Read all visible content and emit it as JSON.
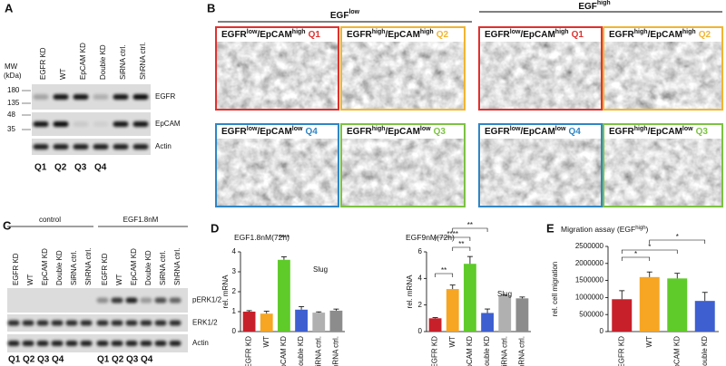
{
  "panel_a": {
    "label": "A",
    "mw_title": [
      "MW",
      "(kDa)"
    ],
    "mw_markers": [
      "180",
      "135",
      "48",
      "35"
    ],
    "lanes": [
      "EGFR KD",
      "WT",
      "EpCAM KD",
      "Double KD",
      "SiRNA ctrl.",
      "ShRNA ctrl."
    ],
    "blots": [
      "EGFR",
      "EpCAM",
      "Actin"
    ],
    "quadrants": [
      {
        "text": "Q1",
        "color": "#d9262b"
      },
      {
        "text": "Q2",
        "color": "#f2b024"
      },
      {
        "text": "Q3",
        "color": "#6cbf3a"
      },
      {
        "text": "Q4",
        "color": "#2f86c6"
      }
    ]
  },
  "panel_b": {
    "label": "B",
    "groups": [
      {
        "name": "EGF",
        "level": "low",
        "images": [
          {
            "parts": [
              "EGFR",
              "low",
              "/EpCAM",
              "high"
            ],
            "quadrant": "Q1",
            "color": "#e0312f"
          },
          {
            "parts": [
              "EGFR",
              "high",
              "/EpCAM",
              "high"
            ],
            "quadrant": "Q2",
            "color": "#f2b530"
          },
          {
            "parts": [
              "EGFR",
              "low",
              "/EpCAM",
              "low"
            ],
            "quadrant": "Q4",
            "color": "#2f86c6"
          },
          {
            "parts": [
              "EGFR",
              "high",
              "/EpCAM",
              "low"
            ],
            "quadrant": "Q3",
            "color": "#7cc242"
          }
        ]
      },
      {
        "name": "EGF",
        "level": "high",
        "images": [
          {
            "parts": [
              "EGFR",
              "low",
              "/EpCAM",
              "high"
            ],
            "quadrant": "Q1",
            "color": "#e0312f"
          },
          {
            "parts": [
              "EGFR",
              "high",
              "/EpCAM",
              "high"
            ],
            "quadrant": "Q2",
            "color": "#f2b530"
          },
          {
            "parts": [
              "EGFR",
              "low",
              "/EpCAM",
              "low"
            ],
            "quadrant": "Q4",
            "color": "#2f86c6"
          },
          {
            "parts": [
              "EGFR",
              "high",
              "/EpCAM",
              "low"
            ],
            "quadrant": "Q3",
            "color": "#7cc242"
          }
        ]
      }
    ]
  },
  "panel_c": {
    "label": "C",
    "groups": [
      "control",
      "EGF1.8nM"
    ],
    "lanes": [
      "EGFR KD",
      "WT",
      "EpCAM KD",
      "Double KD",
      "SiRNA ctrl.",
      "ShRNA ctrl.",
      "EGFR KD",
      "WT",
      "EpCAM KD",
      "Double KD",
      "SiRNA ctrl.",
      "ShRNA ctrl."
    ],
    "blots": [
      "pERK1/2",
      "ERK1/2",
      "Actin"
    ],
    "quadrants": [
      {
        "text": "Q1",
        "color": "#d9262b"
      },
      {
        "text": "Q2",
        "color": "#f2b024"
      },
      {
        "text": "Q3",
        "color": "#6cbf3a"
      },
      {
        "text": "Q4",
        "color": "#2f86c6"
      },
      {
        "text": "Q1",
        "color": "#d9262b"
      },
      {
        "text": "Q2",
        "color": "#f2b024"
      },
      {
        "text": "Q3",
        "color": "#6cbf3a"
      },
      {
        "text": "Q4",
        "color": "#2f86c6"
      }
    ]
  },
  "panel_d_label": "D",
  "panel_e_label": "E",
  "chart_data": [
    {
      "type": "bar",
      "title": [
        "EGF1.8nM(72h)"
      ],
      "y_label": "rel. mRNA",
      "annotation": "Slug",
      "categories": [
        "EGFR KD",
        "WT",
        "EpCAM KD",
        "Double KD",
        "siRNA ctrl.",
        "shRNA ctrl."
      ],
      "values": [
        1.0,
        0.9,
        3.6,
        1.1,
        0.95,
        1.05
      ],
      "errors": [
        0.05,
        0.12,
        0.15,
        0.15,
        0.04,
        0.08
      ],
      "colors": [
        "#c8202a",
        "#f6a623",
        "#5fcb2a",
        "#3d5fd0",
        "#b0b0b0",
        "#8c8c8c"
      ],
      "significance": [
        "****"
      ],
      "ylim": [
        0,
        4
      ],
      "yticks": [
        0,
        1,
        2,
        3,
        4
      ]
    },
    {
      "type": "bar",
      "title": [
        "EGF9nM(72h)"
      ],
      "y_label": "rel. mRNA",
      "annotation": "Slug",
      "categories": [
        "EGFR KD",
        "WT",
        "EpCAM KD",
        "Double KD",
        "siRNA ctrl.",
        "shRNA ctrl."
      ],
      "values": [
        1.0,
        3.2,
        5.1,
        1.4,
        2.7,
        2.5
      ],
      "errors": [
        0.05,
        0.3,
        0.55,
        0.3,
        0.05,
        0.1
      ],
      "colors": [
        "#c8202a",
        "#f6a623",
        "#5fcb2a",
        "#3d5fd0",
        "#b0b0b0",
        "#8c8c8c"
      ],
      "significance": [
        "**",
        "****",
        "**",
        "**"
      ],
      "ylim": [
        0,
        6
      ],
      "yticks": [
        0,
        2,
        4,
        6
      ]
    },
    {
      "type": "bar",
      "title": [
        "Migration assay (EGF",
        "high",
        ")"
      ],
      "y_label": "rel. cell migration",
      "categories": [
        "EGFR KD",
        "WT",
        "EpCAM KD",
        "Double KD"
      ],
      "values": [
        950000,
        1600000,
        1560000,
        900000
      ],
      "errors": [
        250000,
        150000,
        150000,
        250000
      ],
      "colors": [
        "#c8202a",
        "#f6a623",
        "#5fcb2a",
        "#3d5fd0"
      ],
      "significance": [
        "*",
        "*",
        "*"
      ],
      "ylim": [
        0,
        2500000
      ],
      "yticks": [
        0,
        500000,
        1000000,
        1500000,
        2000000,
        2500000
      ]
    }
  ]
}
